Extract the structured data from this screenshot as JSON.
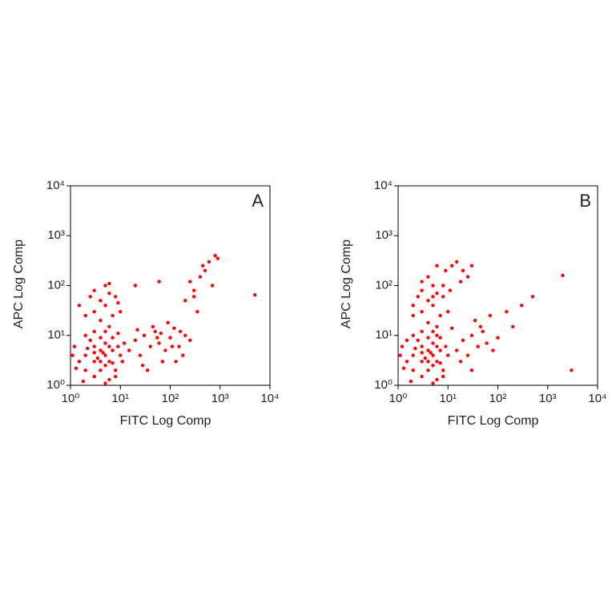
{
  "chart_data": [
    {
      "type": "scatter",
      "title": "A",
      "xlabel": "FITC Log Comp",
      "ylabel": "APC Log Comp",
      "color": "#ff0000",
      "log": true,
      "xlim": [
        1,
        10000
      ],
      "ylim": [
        1,
        10000
      ],
      "xticks": [
        {
          "value": 1,
          "label": "10⁰"
        },
        {
          "value": 10,
          "label": "10¹"
        },
        {
          "value": 100,
          "label": "10²"
        },
        {
          "value": 1000,
          "label": "10³"
        },
        {
          "value": 10000,
          "label": "10⁴"
        }
      ],
      "yticks": [
        {
          "value": 1,
          "label": "10⁰"
        },
        {
          "value": 10,
          "label": "10¹"
        },
        {
          "value": 100,
          "label": "10²"
        },
        {
          "value": 1000,
          "label": "10³"
        },
        {
          "value": 10000,
          "label": "10⁴"
        }
      ],
      "x": [
        2,
        3,
        4,
        5,
        6,
        3,
        4,
        5,
        7,
        2,
        1.5,
        1.2,
        3,
        6,
        8,
        9,
        4,
        5,
        2.5,
        1.8,
        3.5,
        4.5,
        6,
        7,
        10,
        11,
        12,
        2,
        1.3,
        8,
        5,
        3,
        6,
        9,
        4,
        5,
        7,
        3,
        2.2,
        1.1,
        15,
        20,
        25,
        30,
        40,
        50,
        60,
        80,
        100,
        120,
        150,
        200,
        180,
        70,
        35,
        45,
        90,
        130,
        250,
        160,
        55,
        22,
        28,
        65,
        110,
        3,
        4,
        5,
        6,
        2,
        7,
        8,
        3,
        5,
        1.5,
        10,
        4,
        9,
        2.5,
        6,
        200,
        300,
        400,
        500,
        600,
        800,
        250,
        350,
        700,
        450,
        900,
        300,
        5000,
        20,
        60
      ],
      "values": [
        2,
        3,
        5,
        4,
        3,
        6,
        2,
        7,
        5,
        4,
        3,
        6,
        1.5,
        1.3,
        2,
        6,
        9,
        12,
        8,
        1.2,
        3.5,
        4.5,
        6,
        9,
        4,
        3,
        7,
        10,
        2.2,
        1.5,
        1.1,
        12,
        15,
        11,
        3,
        2.5,
        2.8,
        4.5,
        5.5,
        4,
        5,
        8,
        4,
        10,
        6,
        12,
        7,
        5,
        9,
        14,
        6,
        10,
        4,
        3,
        2,
        15,
        18,
        3,
        8,
        12,
        9,
        13,
        2.5,
        11,
        6,
        30,
        50,
        40,
        70,
        25,
        25,
        60,
        80,
        100,
        40,
        30,
        20,
        45,
        60,
        110,
        50,
        80,
        150,
        200,
        300,
        400,
        120,
        30,
        100,
        250,
        350,
        60,
        65,
        100,
        120
      ]
    },
    {
      "type": "scatter",
      "title": "B",
      "xlabel": "FITC Log Comp",
      "ylabel": "APC Log Comp",
      "color": "#ff0000",
      "log": true,
      "xlim": [
        1,
        10000
      ],
      "ylim": [
        1,
        10000
      ],
      "xticks": [
        {
          "value": 1,
          "label": "10⁰"
        },
        {
          "value": 10,
          "label": "10¹"
        },
        {
          "value": 100,
          "label": "10²"
        },
        {
          "value": 1000,
          "label": "10³"
        },
        {
          "value": 10000,
          "label": "10⁴"
        }
      ],
      "yticks": [
        {
          "value": 1,
          "label": "10⁰"
        },
        {
          "value": 10,
          "label": "10¹"
        },
        {
          "value": 100,
          "label": "10²"
        },
        {
          "value": 1000,
          "label": "10³"
        },
        {
          "value": 10000,
          "label": "10⁴"
        }
      ],
      "x": [
        2,
        3,
        4,
        5,
        6,
        3,
        4,
        5,
        7,
        2,
        1.5,
        1.2,
        3,
        6,
        8,
        9,
        4,
        5,
        2.5,
        1.8,
        3.5,
        4.5,
        6,
        7,
        10,
        2,
        1.3,
        8,
        5,
        3,
        6,
        4,
        5,
        7,
        3,
        2.2,
        1.1,
        4,
        6,
        1.5,
        3,
        4,
        5,
        6,
        2,
        7,
        8,
        3,
        5,
        2,
        10,
        4,
        9,
        12,
        15,
        20,
        6,
        3,
        8,
        25,
        5,
        11,
        2.5,
        18,
        30,
        15,
        20,
        25,
        30,
        40,
        50,
        60,
        80,
        100,
        30,
        45,
        18,
        35,
        12,
        70,
        2000,
        3000,
        500,
        300,
        200,
        150
      ],
      "values": [
        2,
        3,
        5,
        4,
        3,
        6,
        2,
        7,
        5,
        4,
        3,
        6,
        1.5,
        1.3,
        2,
        6,
        9,
        12,
        8,
        1.2,
        3.5,
        4.5,
        6,
        9,
        4,
        10,
        2.2,
        1.5,
        1.1,
        12,
        15,
        3,
        2.5,
        2.8,
        4.5,
        5.5,
        4,
        18,
        10,
        8,
        30,
        50,
        40,
        70,
        25,
        25,
        60,
        80,
        100,
        40,
        30,
        150,
        200,
        250,
        300,
        200,
        250,
        120,
        100,
        150,
        60,
        80,
        60,
        120,
        250,
        5,
        8,
        4,
        10,
        6,
        12,
        7,
        5,
        9,
        2,
        15,
        3,
        20,
        14,
        25,
        160,
        2,
        60,
        40,
        15,
        30
      ]
    }
  ]
}
